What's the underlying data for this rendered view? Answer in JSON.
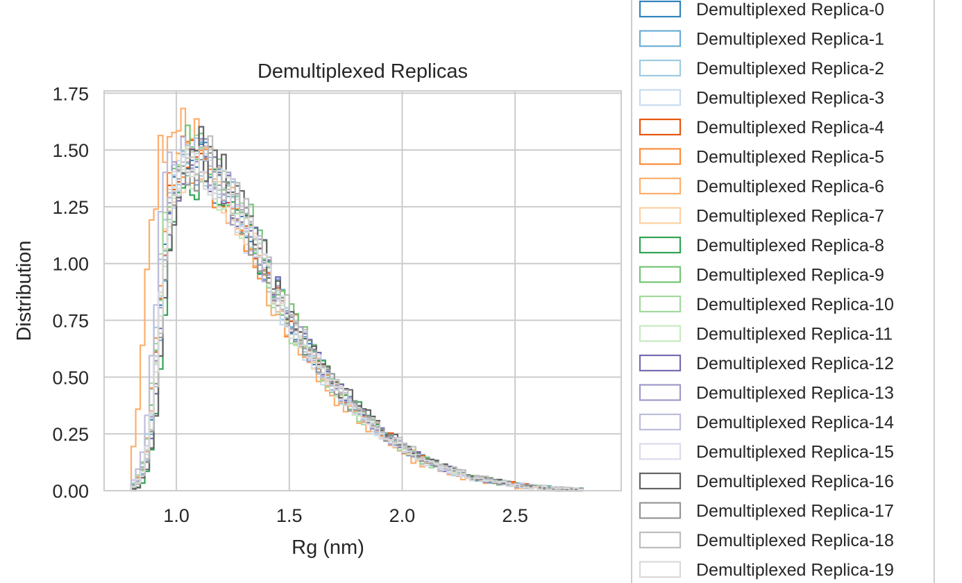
{
  "chart_data": {
    "type": "histogram-step",
    "title": "Demultiplexed Replicas",
    "xlabel": "Rg (nm)",
    "ylabel": "Distribution",
    "xlim": [
      0.68,
      2.97
    ],
    "ylim": [
      0.0,
      1.76
    ],
    "xticks": [
      1.0,
      1.5,
      2.0,
      2.5
    ],
    "xtick_labels": [
      "1.0",
      "1.5",
      "2.0",
      "2.5"
    ],
    "yticks": [
      0.0,
      0.25,
      0.5,
      0.75,
      1.0,
      1.25,
      1.5,
      1.75
    ],
    "ytick_labels": [
      "0.00",
      "0.25",
      "0.50",
      "0.75",
      "1.00",
      "1.25",
      "1.50",
      "1.75"
    ],
    "grid": true,
    "legend": "right-outside",
    "bins": {
      "start": 0.8,
      "width": 0.02,
      "count": 100
    },
    "base_shape": {
      "description_free": true,
      "rise_start": 0.8,
      "peak_x": 1.12,
      "peak_y": 1.45,
      "decay_knots": [
        [
          1.12,
          1.45
        ],
        [
          1.3,
          1.18
        ],
        [
          1.5,
          0.74
        ],
        [
          1.7,
          0.45
        ],
        [
          1.9,
          0.26
        ],
        [
          2.1,
          0.13
        ],
        [
          2.3,
          0.06
        ],
        [
          2.5,
          0.025
        ],
        [
          2.7,
          0.005
        ],
        [
          2.9,
          0.0
        ]
      ]
    },
    "series": [
      {
        "name": "Demultiplexed Replica-0",
        "color": "#3182bd",
        "seed": 11,
        "shift": 0.0,
        "amp": 1.0
      },
      {
        "name": "Demultiplexed Replica-1",
        "color": "#6baed6",
        "seed": 23,
        "shift": 0.01,
        "amp": 1.0
      },
      {
        "name": "Demultiplexed Replica-2",
        "color": "#9ecae1",
        "seed": 37,
        "shift": -0.01,
        "amp": 1.02
      },
      {
        "name": "Demultiplexed Replica-3",
        "color": "#c6dbef",
        "seed": 41,
        "shift": 0.0,
        "amp": 0.98
      },
      {
        "name": "Demultiplexed Replica-4",
        "color": "#e6550d",
        "seed": 53,
        "shift": 0.0,
        "amp": 1.03
      },
      {
        "name": "Demultiplexed Replica-5",
        "color": "#fd8d3c",
        "seed": 67,
        "shift": -0.01,
        "amp": 1.0
      },
      {
        "name": "Demultiplexed Replica-6",
        "color": "#fdae6b",
        "seed": 71,
        "shift": -0.06,
        "amp": 1.08
      },
      {
        "name": "Demultiplexed Replica-7",
        "color": "#fdd0a2",
        "seed": 83,
        "shift": 0.0,
        "amp": 1.0
      },
      {
        "name": "Demultiplexed Replica-8",
        "color": "#31a354",
        "seed": 97,
        "shift": 0.02,
        "amp": 0.97
      },
      {
        "name": "Demultiplexed Replica-9",
        "color": "#74c476",
        "seed": 101,
        "shift": 0.0,
        "amp": 1.05
      },
      {
        "name": "Demultiplexed Replica-10",
        "color": "#a1d99b",
        "seed": 113,
        "shift": -0.01,
        "amp": 1.0
      },
      {
        "name": "Demultiplexed Replica-11",
        "color": "#c7e9c0",
        "seed": 127,
        "shift": 0.0,
        "amp": 0.99
      },
      {
        "name": "Demultiplexed Replica-12",
        "color": "#756bb1",
        "seed": 131,
        "shift": 0.01,
        "amp": 1.0
      },
      {
        "name": "Demultiplexed Replica-13",
        "color": "#9e9ac8",
        "seed": 149,
        "shift": 0.0,
        "amp": 1.01
      },
      {
        "name": "Demultiplexed Replica-14",
        "color": "#bcbddc",
        "seed": 157,
        "shift": -0.02,
        "amp": 1.06
      },
      {
        "name": "Demultiplexed Replica-15",
        "color": "#dadaeb",
        "seed": 163,
        "shift": 0.0,
        "amp": 1.0
      },
      {
        "name": "Demultiplexed Replica-16",
        "color": "#636363",
        "seed": 173,
        "shift": 0.02,
        "amp": 1.02
      },
      {
        "name": "Demultiplexed Replica-17",
        "color": "#969696",
        "seed": 181,
        "shift": 0.01,
        "amp": 0.98
      },
      {
        "name": "Demultiplexed Replica-18",
        "color": "#bdbdbd",
        "seed": 191,
        "shift": 0.01,
        "amp": 1.03
      },
      {
        "name": "Demultiplexed Replica-19",
        "color": "#d9d9d9",
        "seed": 199,
        "shift": 0.0,
        "amp": 1.0
      }
    ],
    "colors": {
      "grid": "#cccccc",
      "frame": "#cccccc",
      "text": "#262626"
    }
  }
}
